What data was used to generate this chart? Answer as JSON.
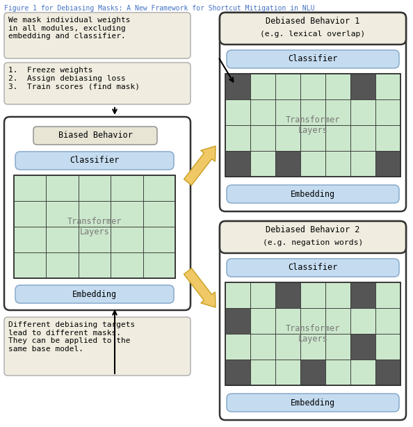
{
  "title": "Figure 1 for Debiasing Masks: A New Framework for Shortcut Mitigation in NLU",
  "title_color": "#4472C4",
  "bg_color": "#ffffff",
  "box_bg_beige": "#f0ede0",
  "box_bg_white": "#ffffff",
  "cell_green": "#cce8cc",
  "cell_dark": "#555555",
  "classifier_bg": "#c5dcf0",
  "embedding_bg": "#c5dcf0",
  "biased_inner_bg": "#e8e5d5",
  "biased_box_title": "Biased Behavior",
  "debiased1_title": "Debiased Behavior 1",
  "debiased1_subtitle": "(e.g. lexical overlap)",
  "debiased2_title": "Debiased Behavior 2",
  "debiased2_subtitle": "(e.g. negation words)",
  "text_top": "We mask individual weights\nin all modules, excluding\nembedding and classifier.",
  "text_steps": "1.  Freeze weights\n2.  Assign debiasing loss\n3.  Train scores (find mask)",
  "text_bottom": "Different debiasing targets\nlead to different masks.\nThey can be applied to the\nsame base model.",
  "grid1_mask": [
    [
      1,
      0,
      0,
      0,
      0,
      1,
      0
    ],
    [
      0,
      0,
      0,
      0,
      0,
      0,
      0
    ],
    [
      0,
      0,
      0,
      0,
      0,
      0,
      0
    ],
    [
      1,
      0,
      1,
      0,
      0,
      0,
      1
    ]
  ],
  "grid2_mask": [
    [
      0,
      0,
      1,
      0,
      0,
      1,
      0
    ],
    [
      1,
      0,
      0,
      0,
      0,
      0,
      0
    ],
    [
      0,
      0,
      0,
      0,
      0,
      1,
      0
    ],
    [
      1,
      0,
      0,
      1,
      0,
      0,
      1
    ]
  ],
  "arrow_color": "#f0c866",
  "arrow_edge_color": "#c8a020"
}
